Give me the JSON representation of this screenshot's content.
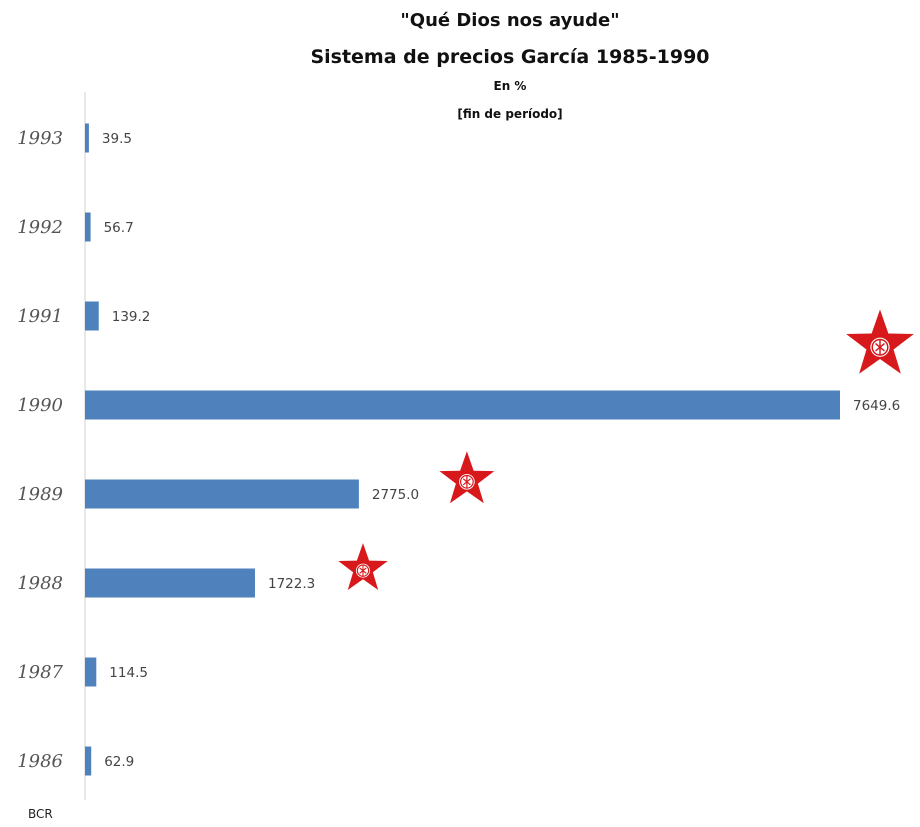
{
  "chart_data": {
    "type": "bar",
    "orientation": "horizontal",
    "title": "\"Qué Dios nos ayude\"",
    "subtitle": "Sistema de precios García 1985-1990",
    "unit_label": "En %",
    "period_label": "[fin de período]",
    "source": "BCR",
    "categories": [
      "1993",
      "1992",
      "1991",
      "1990",
      "1989",
      "1988",
      "1987",
      "1986"
    ],
    "values": [
      39.5,
      56.7,
      139.2,
      7649.6,
      2775.0,
      1722.3,
      114.5,
      62.9
    ],
    "value_labels": [
      "39.5",
      "56.7",
      "139.2",
      "7649.6",
      "2775.0",
      "1722.3",
      "114.5",
      "62.9"
    ],
    "xlim": [
      0,
      7649.6
    ],
    "grid": false,
    "legend": "none",
    "bar_color": "#4f81bd",
    "axis_color": "#d0d0d0",
    "marker": {
      "name": "apra-star-logo",
      "color": "#d7191c",
      "applies_to": [
        "1990",
        "1989",
        "1988"
      ]
    }
  }
}
